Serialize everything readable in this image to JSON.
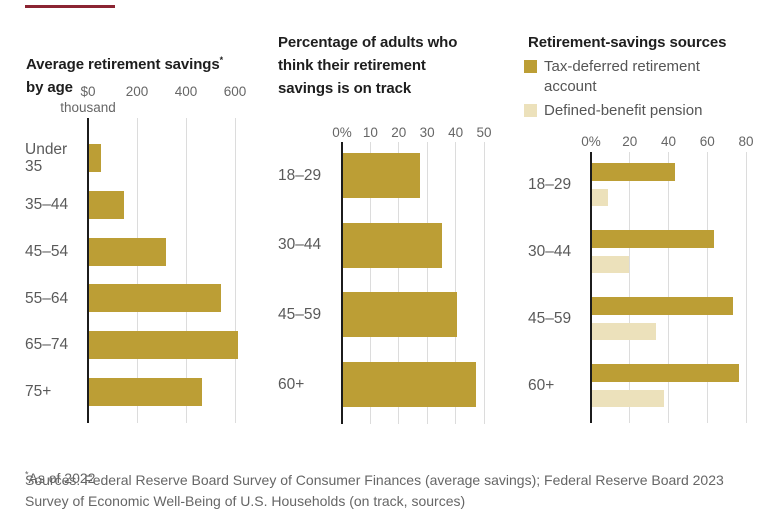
{
  "colors": {
    "gold": "#bc9e35",
    "cream": "#ece1bb",
    "accent": "#8b2432",
    "grid": "#dcdcdc",
    "axis": "#1c1c1c"
  },
  "footer": {
    "footnote_marker": "*",
    "footnote": "As of 2022",
    "sources": "Sources: Federal Reserve Board Survey of Consumer Finances (average savings); Federal Reserve Board 2023\nSurvey of Economic Well-Being of U.S. Households (on track, sources)"
  },
  "chart_data": [
    {
      "type": "bar",
      "orientation": "horizontal",
      "title": "Average retirement savings* by age",
      "title_line1": "Average retirement savings",
      "footnote_marker": "*",
      "title_line2": "by age",
      "categories": [
        "Under 35",
        "35–44",
        "45–54",
        "55–64",
        "65–74",
        "75+"
      ],
      "values": [
        49,
        141,
        313,
        537,
        609,
        462
      ],
      "unit": "$ thousand",
      "grid": true,
      "x_axis": {
        "ticks": [
          0,
          200,
          400,
          600
        ],
        "tick_labels": [
          "$0",
          "200",
          "400",
          "600"
        ],
        "unit_label": "thousand",
        "min": 0,
        "max": 660
      }
    },
    {
      "type": "bar",
      "orientation": "horizontal",
      "title": "Percentage of adults who think their retirement savings is on track",
      "title_display": "Percentage of adults who\nthink their retirement\nsavings is on track",
      "categories": [
        "18–29",
        "30–44",
        "45–59",
        "60+"
      ],
      "values": [
        27,
        35,
        40,
        47
      ],
      "unit": "%",
      "grid": true,
      "x_axis": {
        "ticks": [
          0,
          10,
          20,
          30,
          40,
          50
        ],
        "tick_labels": [
          "0%",
          "10",
          "20",
          "30",
          "40",
          "50"
        ],
        "min": 0,
        "max": 54
      }
    },
    {
      "type": "bar",
      "orientation": "horizontal",
      "title": "Retirement-savings sources",
      "categories": [
        "18–29",
        "30–44",
        "45–59",
        "60+"
      ],
      "series": [
        {
          "name": "Tax-deferred retirement account",
          "values": [
            43,
            63,
            73,
            76
          ]
        },
        {
          "name": "Defined-benefit pension",
          "values": [
            8,
            19,
            33,
            37
          ]
        }
      ],
      "legend_display": [
        "Tax-deferred retirement\naccount",
        "Defined-benefit pension"
      ],
      "legend_position": "top-left",
      "unit": "%",
      "grid": true,
      "x_axis": {
        "ticks": [
          0,
          20,
          40,
          60,
          80
        ],
        "tick_labels": [
          "0%",
          "20",
          "40",
          "60",
          "80"
        ],
        "min": 0,
        "max": 85
      }
    }
  ]
}
